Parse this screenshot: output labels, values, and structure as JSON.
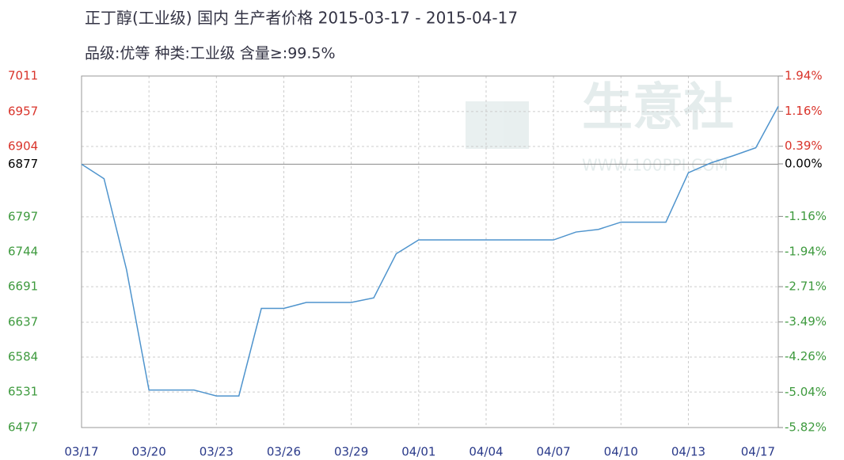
{
  "chart_data": {
    "type": "line",
    "title": "正丁醇(工业级) 国内 生产者价格 2015-03-17 - 2015-04-17",
    "subtitle": "品级:优等 种类:工业级 含量≥:99.5%",
    "watermark": [
      "生意社",
      "WWW.100PPI.COM"
    ],
    "categories": [
      "03/17",
      null,
      null,
      "03/20",
      null,
      null,
      "03/23",
      null,
      null,
      "03/26",
      null,
      null,
      "03/29",
      null,
      null,
      "04/01",
      null,
      null,
      "04/04",
      null,
      null,
      "04/07",
      null,
      null,
      "04/10",
      null,
      null,
      "04/13",
      null,
      null,
      null,
      "04/17"
    ],
    "series": [
      {
        "color": "#4f94cd",
        "values": [
          6877,
          6855,
          6717,
          6534,
          6534,
          6534,
          6525,
          6525,
          6658,
          6658,
          6667,
          6667,
          6667,
          6674,
          6741,
          6762,
          6762,
          6762,
          6762,
          6762,
          6762,
          6762,
          6774,
          6778,
          6789,
          6789,
          6789,
          6864,
          6879,
          6890,
          6902,
          6965
        ]
      }
    ],
    "ylim": [
      6477,
      7011
    ],
    "yticks": [
      7011,
      6957,
      6904,
      6877,
      6797,
      6744,
      6691,
      6637,
      6584,
      6531,
      6477
    ],
    "y2lim": [
      -5.82,
      1.94
    ],
    "y2ticks": [
      {
        "value": 1.94,
        "label": "1.94%"
      },
      {
        "value": 1.16,
        "label": "1.16%"
      },
      {
        "value": 0.39,
        "label": "0.39%"
      },
      {
        "value": 0,
        "label": "0.00%"
      },
      {
        "value": -1.16,
        "label": "-1.16%"
      },
      {
        "value": -1.94,
        "label": "-1.94%"
      },
      {
        "value": -2.71,
        "label": "-2.71%"
      },
      {
        "value": -3.49,
        "label": "-3.49%"
      },
      {
        "value": -4.26,
        "label": "-4.26%"
      },
      {
        "value": -5.04,
        "label": "-5.04%"
      },
      {
        "value": -5.82,
        "label": "-5.82%"
      }
    ],
    "baseline": 6877,
    "above_color": "#d9342b",
    "below_color": "#3e9a3e",
    "base_color": "#000000",
    "grid": true
  }
}
